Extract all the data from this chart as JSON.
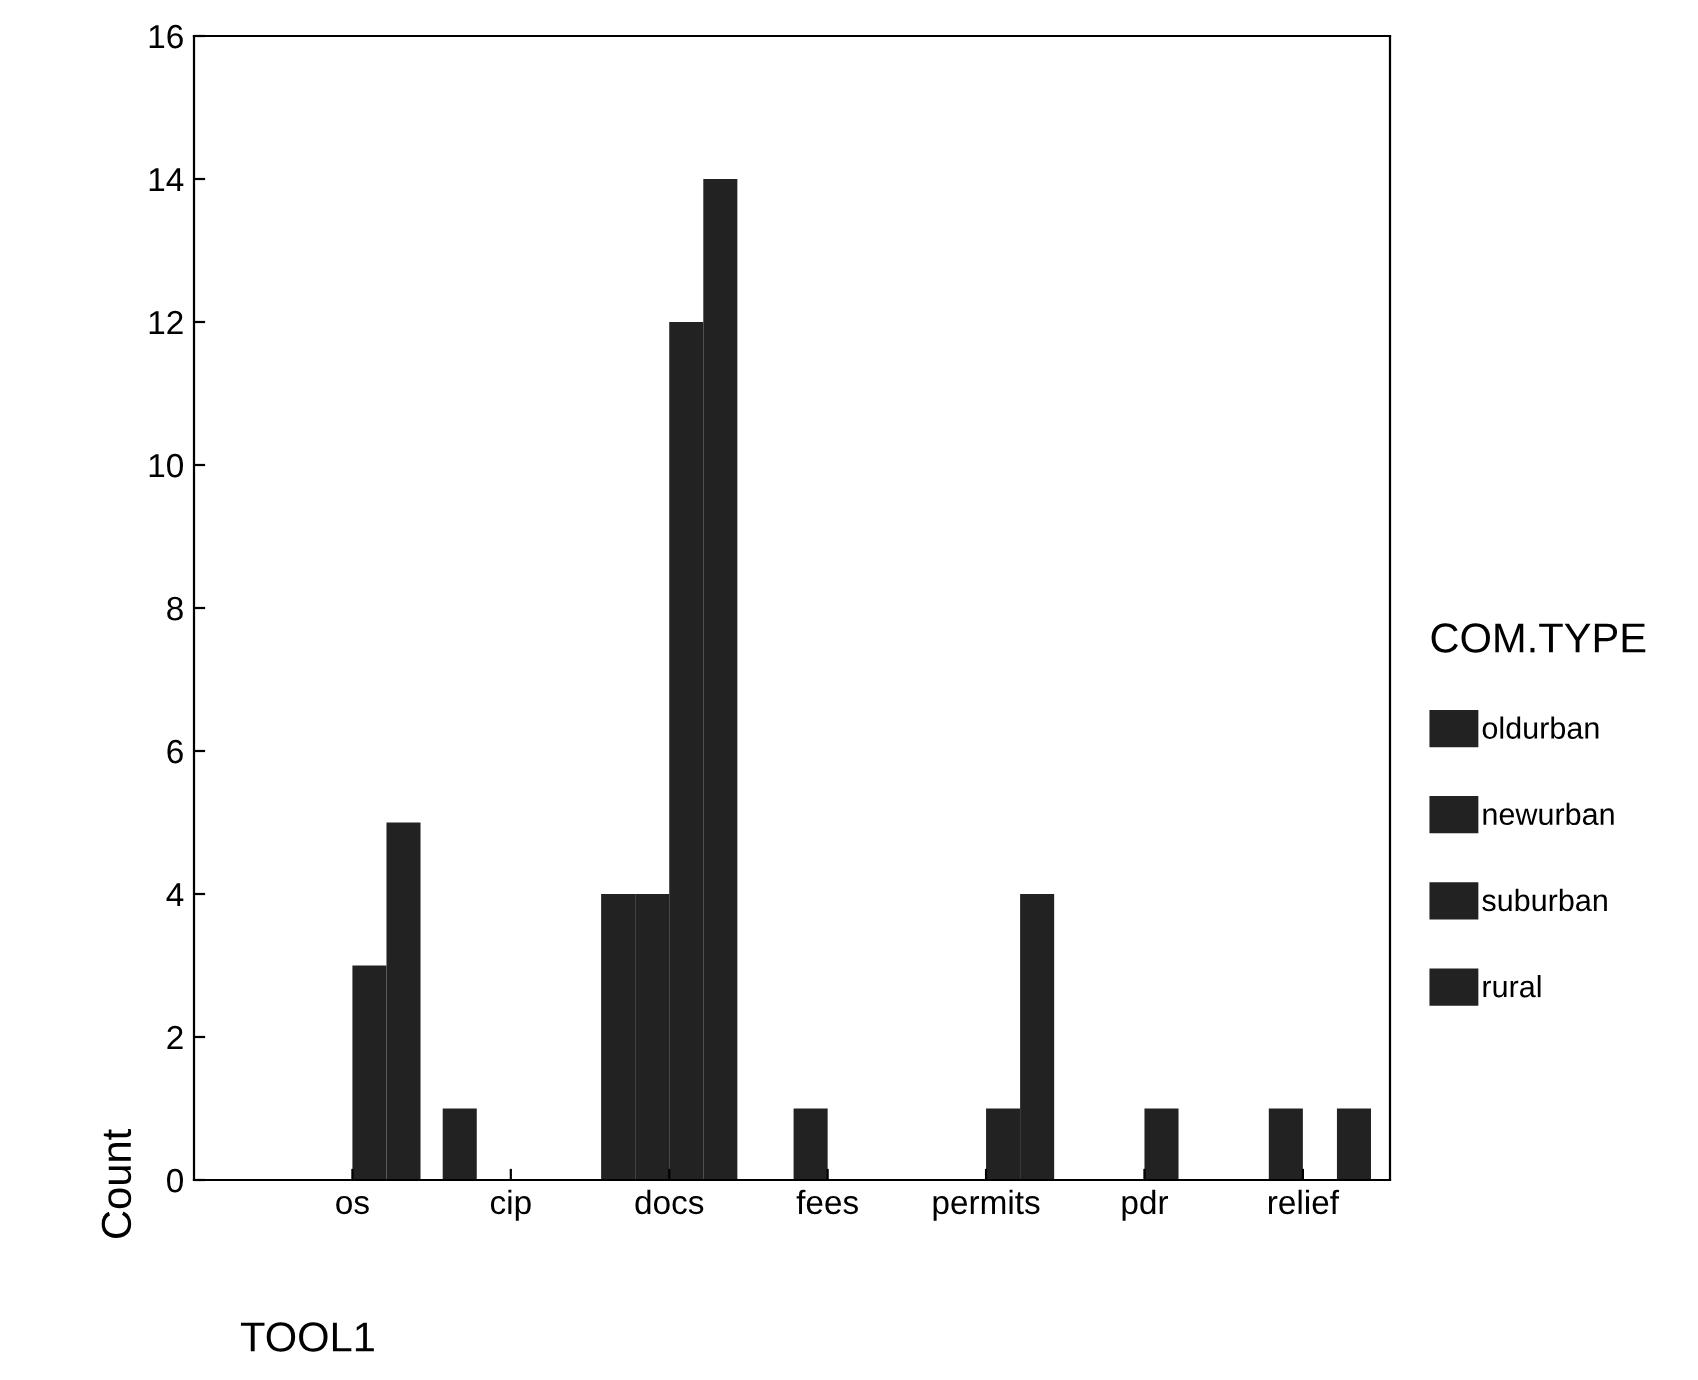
{
  "chart_data": {
    "type": "bar",
    "xlabel": "TOOL1",
    "ylabel": "Count",
    "legend_title": "COM.TYPE",
    "categories": [
      "os",
      "cip",
      "docs",
      "fees",
      "permits",
      "pdr",
      "relief"
    ],
    "series": [
      {
        "name": "oldurban",
        "color": "#222222",
        "values": [
          0,
          1,
          4,
          0,
          0,
          0,
          0
        ]
      },
      {
        "name": "newurban",
        "color": "#222222",
        "values": [
          0,
          0,
          4,
          1,
          0,
          0,
          1
        ]
      },
      {
        "name": "suburban",
        "color": "#222222",
        "values": [
          3,
          0,
          12,
          0,
          1,
          1,
          0
        ]
      },
      {
        "name": "rural",
        "color": "#222222",
        "values": [
          5,
          0,
          14,
          0,
          4,
          0,
          1
        ]
      }
    ],
    "ylim": [
      0,
      16
    ],
    "yticks": [
      0,
      2,
      4,
      6,
      8,
      10,
      12,
      14,
      16
    ],
    "grid": false,
    "legend": "right"
  }
}
